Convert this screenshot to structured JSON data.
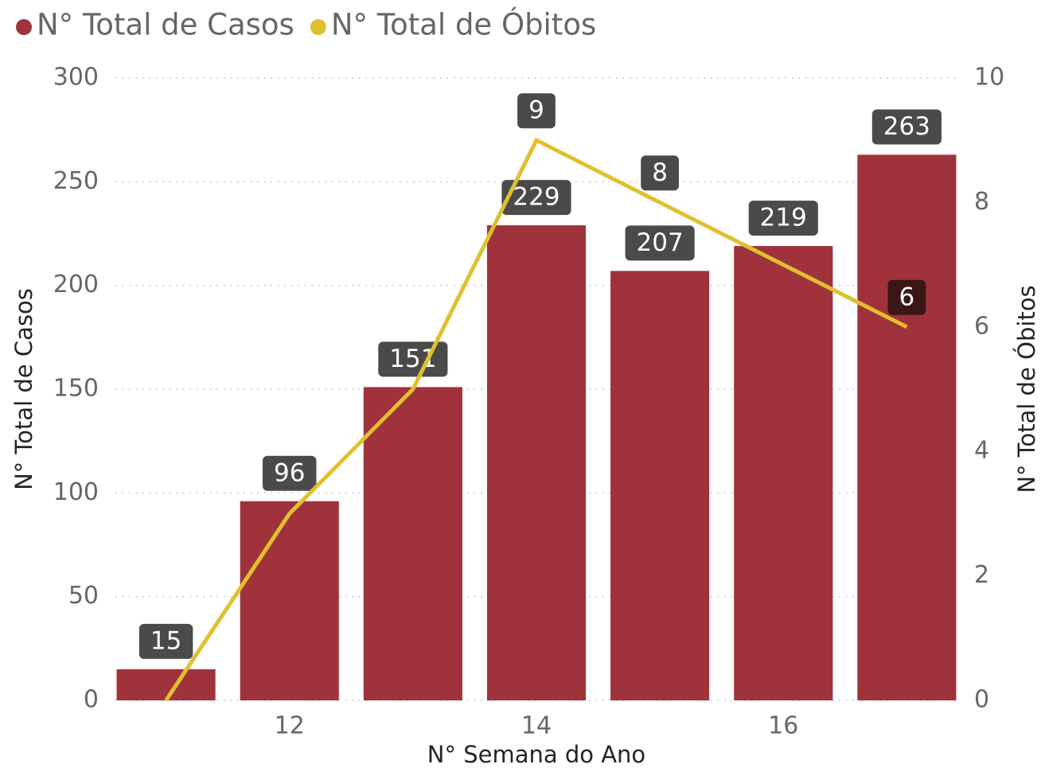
{
  "chart_data": {
    "type": "bar_line",
    "x_label": "N° Semana do Ano",
    "y_label": "N° Total de Casos",
    "y2_label": "N° Total de Óbitos",
    "x": [
      11,
      12,
      13,
      14,
      15,
      16,
      17
    ],
    "xlim": [
      10.59,
      17.41
    ],
    "xticks": [
      12,
      14,
      16
    ],
    "ylim": [
      0,
      300
    ],
    "yticks": [
      0,
      50,
      100,
      150,
      200,
      250,
      300
    ],
    "y2lim": [
      0,
      10
    ],
    "y2ticks": [
      0,
      2,
      4,
      6,
      8,
      10
    ],
    "grid": true,
    "legend": "top-left",
    "series": [
      {
        "name": "N° Total de Casos",
        "type": "bar",
        "color": "#a0323c",
        "values": [
          15,
          96,
          151,
          229,
          207,
          219,
          263
        ]
      },
      {
        "name": "N° Total de Óbitos",
        "type": "line",
        "axis": "y2",
        "color": "#e0c02e",
        "values": [
          0,
          3,
          5,
          9,
          8,
          7,
          6
        ],
        "value_labels": [
          null,
          null,
          null,
          "9",
          "8",
          null,
          "6"
        ]
      }
    ]
  }
}
